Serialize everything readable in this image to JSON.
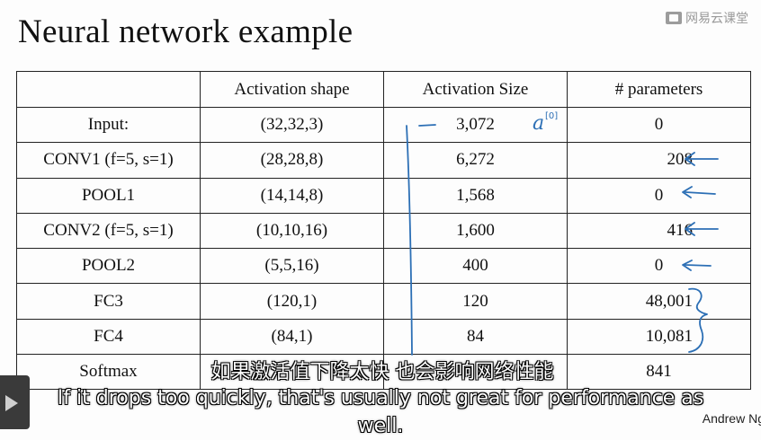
{
  "title": "Neural network example",
  "watermark": "网易云课堂",
  "table": {
    "headers": [
      "",
      "Activation shape",
      "Activation Size",
      "# parameters"
    ],
    "rows": [
      {
        "layer": "Input:",
        "shape": "(32,32,3)",
        "size": "3,072",
        "params": "0"
      },
      {
        "layer": "CONV1 (f=5, s=1)",
        "shape": "(28,28,8)",
        "size": "6,272",
        "params": "208"
      },
      {
        "layer": "POOL1",
        "shape": "(14,14,8)",
        "size": "1,568",
        "params": "0"
      },
      {
        "layer": "CONV2  (f=5, s=1)",
        "shape": "(10,10,16)",
        "size": "1,600",
        "params": "416"
      },
      {
        "layer": "POOL2",
        "shape": "(5,5,16)",
        "size": "400",
        "params": "0"
      },
      {
        "layer": "FC3",
        "shape": "(120,1)",
        "size": "120",
        "params": "48,001"
      },
      {
        "layer": "FC4",
        "shape": "(84,1)",
        "size": "84",
        "params": "10,081"
      },
      {
        "layer": "Softmax",
        "shape": "",
        "size": "",
        "params": "841"
      }
    ]
  },
  "annotation": {
    "a0": "a",
    "a0_sup": "[0]"
  },
  "subtitles": {
    "chinese": "如果激活值下降太快 也会影响网络性能",
    "english": "If it drops too quickly, that's usually not great for performance as well."
  },
  "author": "Andrew Ng",
  "colors": {
    "ink": "#2c6fb5",
    "text": "#111111"
  }
}
